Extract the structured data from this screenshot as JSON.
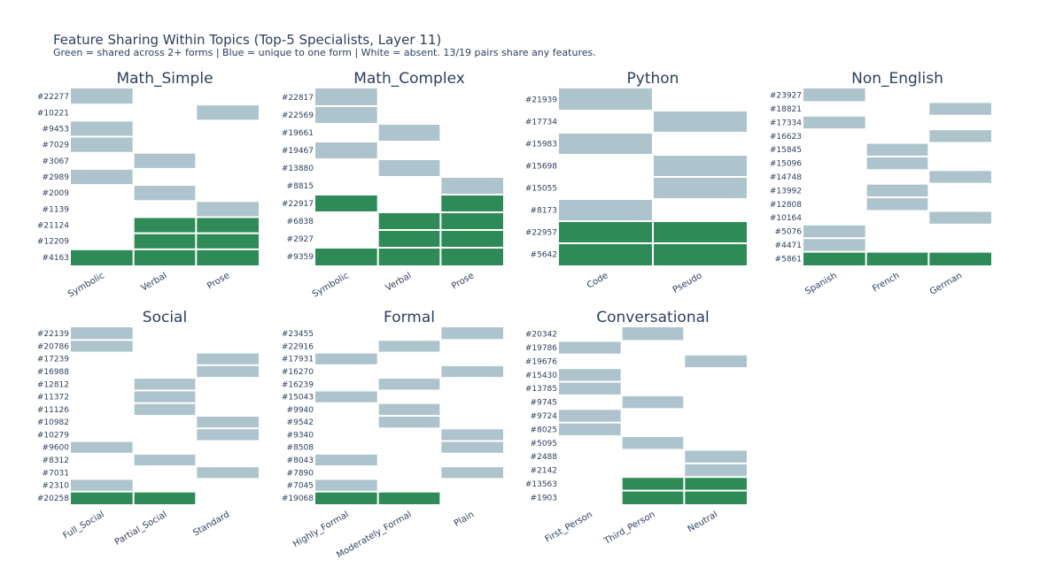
{
  "colors": {
    "shared": "#2e8b57",
    "unique": "#aec4cc",
    "absent": "#ffffff",
    "text": "#2a3f5f"
  },
  "chart_data": {
    "type": "heatmap",
    "title": "Feature Sharing Within Topics (Top-5 Specialists, Layer 11)",
    "subtitle": "Green = shared across 2+ forms | Blue = unique to one form | White = absent. 13/19 pairs share any features.",
    "legend": {
      "2": "shared",
      "1": "unique",
      "0": "absent"
    },
    "panels": [
      {
        "title": "Math_Simple",
        "forms": [
          "Symbolic",
          "Verbal",
          "Prose"
        ],
        "features": [
          "#22277",
          "#10221",
          "#9453",
          "#7029",
          "#3067",
          "#2989",
          "#2009",
          "#1139",
          "#21124",
          "#12209",
          "#4163"
        ],
        "matrix": [
          [
            1,
            0,
            0
          ],
          [
            0,
            0,
            1
          ],
          [
            1,
            0,
            0
          ],
          [
            1,
            0,
            0
          ],
          [
            0,
            1,
            0
          ],
          [
            1,
            0,
            0
          ],
          [
            0,
            1,
            0
          ],
          [
            0,
            0,
            1
          ],
          [
            0,
            2,
            2
          ],
          [
            0,
            2,
            2
          ],
          [
            2,
            2,
            2
          ]
        ]
      },
      {
        "title": "Math_Complex",
        "forms": [
          "Symbolic",
          "Verbal",
          "Prose"
        ],
        "features": [
          "#22817",
          "#22569",
          "#19661",
          "#19467",
          "#13880",
          "#8815",
          "#22917",
          "#6838",
          "#2927",
          "#9359"
        ],
        "matrix": [
          [
            1,
            0,
            0
          ],
          [
            1,
            0,
            0
          ],
          [
            0,
            1,
            0
          ],
          [
            1,
            0,
            0
          ],
          [
            0,
            1,
            0
          ],
          [
            0,
            0,
            1
          ],
          [
            2,
            0,
            2
          ],
          [
            0,
            2,
            2
          ],
          [
            0,
            2,
            2
          ],
          [
            2,
            2,
            2
          ]
        ]
      },
      {
        "title": "Python",
        "forms": [
          "Code",
          "Pseudo"
        ],
        "features": [
          "#21939",
          "#17734",
          "#15983",
          "#15698",
          "#15055",
          "#8173",
          "#22957",
          "#5642"
        ],
        "matrix": [
          [
            1,
            0
          ],
          [
            0,
            1
          ],
          [
            1,
            0
          ],
          [
            0,
            1
          ],
          [
            0,
            1
          ],
          [
            1,
            0
          ],
          [
            2,
            2
          ],
          [
            2,
            2
          ]
        ]
      },
      {
        "title": "Non_English",
        "forms": [
          "Spanish",
          "French",
          "German"
        ],
        "features": [
          "#23927",
          "#18821",
          "#17334",
          "#16623",
          "#15845",
          "#15096",
          "#14748",
          "#13992",
          "#12808",
          "#10164",
          "#5076",
          "#4471",
          "#5861"
        ],
        "matrix": [
          [
            1,
            0,
            0
          ],
          [
            0,
            0,
            1
          ],
          [
            1,
            0,
            0
          ],
          [
            0,
            0,
            1
          ],
          [
            0,
            1,
            0
          ],
          [
            0,
            1,
            0
          ],
          [
            0,
            0,
            1
          ],
          [
            0,
            1,
            0
          ],
          [
            0,
            1,
            0
          ],
          [
            0,
            0,
            1
          ],
          [
            1,
            0,
            0
          ],
          [
            1,
            0,
            0
          ],
          [
            2,
            2,
            2
          ]
        ]
      },
      {
        "title": "Social",
        "forms": [
          "Full_Social",
          "Partial_Social",
          "Standard"
        ],
        "features": [
          "#22139",
          "#20786",
          "#17239",
          "#16988",
          "#12812",
          "#11372",
          "#11126",
          "#10982",
          "#10279",
          "#9600",
          "#8312",
          "#7031",
          "#2310",
          "#20258"
        ],
        "matrix": [
          [
            1,
            0,
            0
          ],
          [
            1,
            0,
            0
          ],
          [
            0,
            0,
            1
          ],
          [
            0,
            0,
            1
          ],
          [
            0,
            1,
            0
          ],
          [
            0,
            1,
            0
          ],
          [
            0,
            1,
            0
          ],
          [
            0,
            0,
            1
          ],
          [
            0,
            0,
            1
          ],
          [
            1,
            0,
            0
          ],
          [
            0,
            1,
            0
          ],
          [
            0,
            0,
            1
          ],
          [
            1,
            0,
            0
          ],
          [
            2,
            2,
            0
          ]
        ]
      },
      {
        "title": "Formal",
        "forms": [
          "Highly_Formal",
          "Moderately_Formal",
          "Plain"
        ],
        "features": [
          "#23455",
          "#22916",
          "#17931",
          "#16270",
          "#16239",
          "#15043",
          "#9940",
          "#9542",
          "#9340",
          "#8508",
          "#8043",
          "#7890",
          "#7045",
          "#19068"
        ],
        "matrix": [
          [
            0,
            0,
            1
          ],
          [
            0,
            1,
            0
          ],
          [
            1,
            0,
            0
          ],
          [
            0,
            0,
            1
          ],
          [
            0,
            1,
            0
          ],
          [
            1,
            0,
            0
          ],
          [
            0,
            1,
            0
          ],
          [
            0,
            1,
            0
          ],
          [
            0,
            0,
            1
          ],
          [
            0,
            0,
            1
          ],
          [
            1,
            0,
            0
          ],
          [
            0,
            0,
            1
          ],
          [
            1,
            0,
            0
          ],
          [
            2,
            2,
            0
          ]
        ]
      },
      {
        "title": "Conversational",
        "forms": [
          "First_Person",
          "Third_Person",
          "Neutral"
        ],
        "features": [
          "#20342",
          "#19786",
          "#19676",
          "#15430",
          "#13785",
          "#9745",
          "#9724",
          "#8025",
          "#5095",
          "#2488",
          "#2142",
          "#13563",
          "#1903"
        ],
        "matrix": [
          [
            0,
            1,
            0
          ],
          [
            1,
            0,
            0
          ],
          [
            0,
            0,
            1
          ],
          [
            1,
            0,
            0
          ],
          [
            1,
            0,
            0
          ],
          [
            0,
            1,
            0
          ],
          [
            1,
            0,
            0
          ],
          [
            1,
            0,
            0
          ],
          [
            0,
            1,
            0
          ],
          [
            0,
            0,
            1
          ],
          [
            0,
            0,
            1
          ],
          [
            0,
            2,
            2
          ],
          [
            0,
            2,
            2
          ]
        ]
      }
    ]
  }
}
